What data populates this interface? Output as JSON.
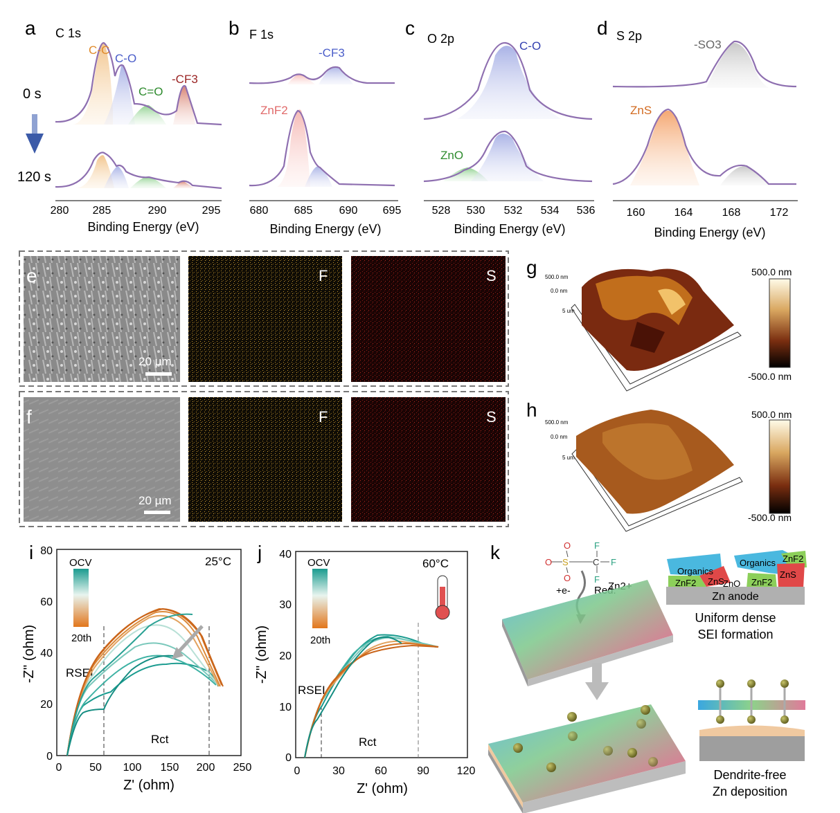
{
  "xps": {
    "xlabel": "Binding Energy (eV)",
    "time_top": "0 s",
    "time_bottom": "120 s",
    "panels": [
      {
        "letter": "a",
        "core": "C 1s",
        "ticks": [
          "280",
          "285",
          "290",
          "295"
        ],
        "labels": [
          {
            "text": "C-C",
            "color": "#e08a2a"
          },
          {
            "text": "C-O",
            "color": "#4a5dc9"
          },
          {
            "text": "C=O",
            "color": "#2e8b2e"
          },
          {
            "text": "-CF3",
            "color": "#9a2323"
          }
        ]
      },
      {
        "letter": "b",
        "core": "F 1s",
        "ticks": [
          "680",
          "685",
          "690",
          "695"
        ],
        "labels": [
          {
            "text": "-CF3",
            "color": "#4a5dc9"
          },
          {
            "text": "ZnF2",
            "color": "#e06a6a"
          }
        ]
      },
      {
        "letter": "c",
        "core": "O 2p",
        "ticks": [
          "528",
          "530",
          "532",
          "534",
          "536"
        ],
        "labels": [
          {
            "text": "C-O",
            "color": "#3340b0"
          },
          {
            "text": "ZnO",
            "color": "#2e8b2e"
          }
        ]
      },
      {
        "letter": "d",
        "core": "S 2p",
        "ticks": [
          "160",
          "164",
          "168",
          "172"
        ],
        "labels": [
          {
            "text": "-SO3",
            "color": "#666666"
          },
          {
            "text": "ZnS",
            "color": "#d26a20"
          }
        ]
      }
    ]
  },
  "sem": {
    "row_e": {
      "letter": "e",
      "scale": "20 µm",
      "map1": "F",
      "map2": "S"
    },
    "row_f": {
      "letter": "f",
      "scale": "20 µm",
      "map1": "F",
      "map2": "S"
    }
  },
  "afm": {
    "g": {
      "letter": "g",
      "cb_top": "500.0 nm",
      "cb_bottom": "-500.0 nm",
      "axis_z": "500.0 nm",
      "axis_z0": "0.0 nm",
      "axis_y": "5 um"
    },
    "h": {
      "letter": "h",
      "cb_top": "500.0 nm",
      "cb_bottom": "-500.0 nm",
      "axis_z": "500.0 nm",
      "axis_z0": "0.0 nm",
      "axis_y": "5 um"
    }
  },
  "eis": {
    "i": {
      "letter": "i",
      "temp": "25°C",
      "xlabel": "Z' (ohm)",
      "ylabel": "-Z'' (ohm)",
      "xticks": [
        "0",
        "50",
        "100",
        "150",
        "200",
        "250"
      ],
      "yticks": [
        "0",
        "20",
        "40",
        "60",
        "80"
      ],
      "legend_top": "OCV",
      "legend_bottom": "20th",
      "r_sei": "RSEI",
      "r_ct": "Rct"
    },
    "j": {
      "letter": "j",
      "temp": "60°C",
      "xlabel": "Z' (ohm)",
      "ylabel": "-Z'' (ohm)",
      "xticks": [
        "0",
        "30",
        "60",
        "90",
        "120"
      ],
      "yticks": [
        "0",
        "10",
        "20",
        "30",
        "40"
      ],
      "legend_top": "OCV",
      "legend_bottom": "20th",
      "r_sei": "RSEI",
      "r_ct": "Rct"
    }
  },
  "schematic": {
    "letter": "k",
    "zn_ion": "Zn2+",
    "electron": "+e-",
    "red": "Red.",
    "sei_labels": [
      "Organics",
      "ZnS",
      "Organics",
      "ZnF2",
      "ZnF2",
      "ZnO",
      "ZnF2",
      "ZnS"
    ],
    "anode": "Zn anode",
    "caption_top_1": "Uniform dense",
    "caption_top_2": "SEI formation",
    "caption_bottom_1": "Dendrite-free",
    "caption_bottom_2": "Zn deposition"
  }
}
